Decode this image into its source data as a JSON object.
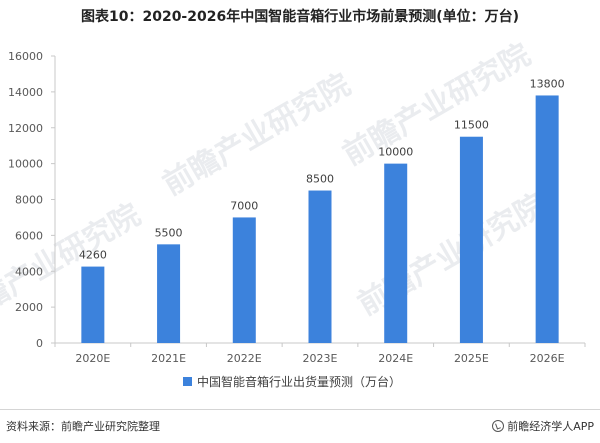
{
  "title": "图表10：2020-2026年中国智能音箱行业市场前景预测(单位：万台)",
  "watermark": "前瞻产业研究院",
  "footer": {
    "source": "资料来源：前瞻产业研究院整理",
    "brand": "前瞻经济学人APP",
    "brand_icon": "qianzhan-logo-icon"
  },
  "colors": {
    "bar": "#3c82dc",
    "axis": "#c8c8c8",
    "grid": "#e6e6e6",
    "text": "#595959"
  },
  "chart_data": {
    "type": "bar",
    "categories": [
      "2020E",
      "2021E",
      "2022E",
      "2023E",
      "2024E",
      "2025E",
      "2026E"
    ],
    "series": [
      {
        "name": "中国智能音箱行业出货量预测（万台）",
        "values": [
          4260,
          5500,
          7000,
          8500,
          10000,
          11500,
          13800
        ]
      }
    ],
    "yticks": [
      0,
      2000,
      4000,
      6000,
      8000,
      10000,
      12000,
      14000,
      16000
    ],
    "ylim": [
      0,
      16000
    ],
    "grid": false,
    "legend": "bottom-center",
    "data_labels": true
  }
}
